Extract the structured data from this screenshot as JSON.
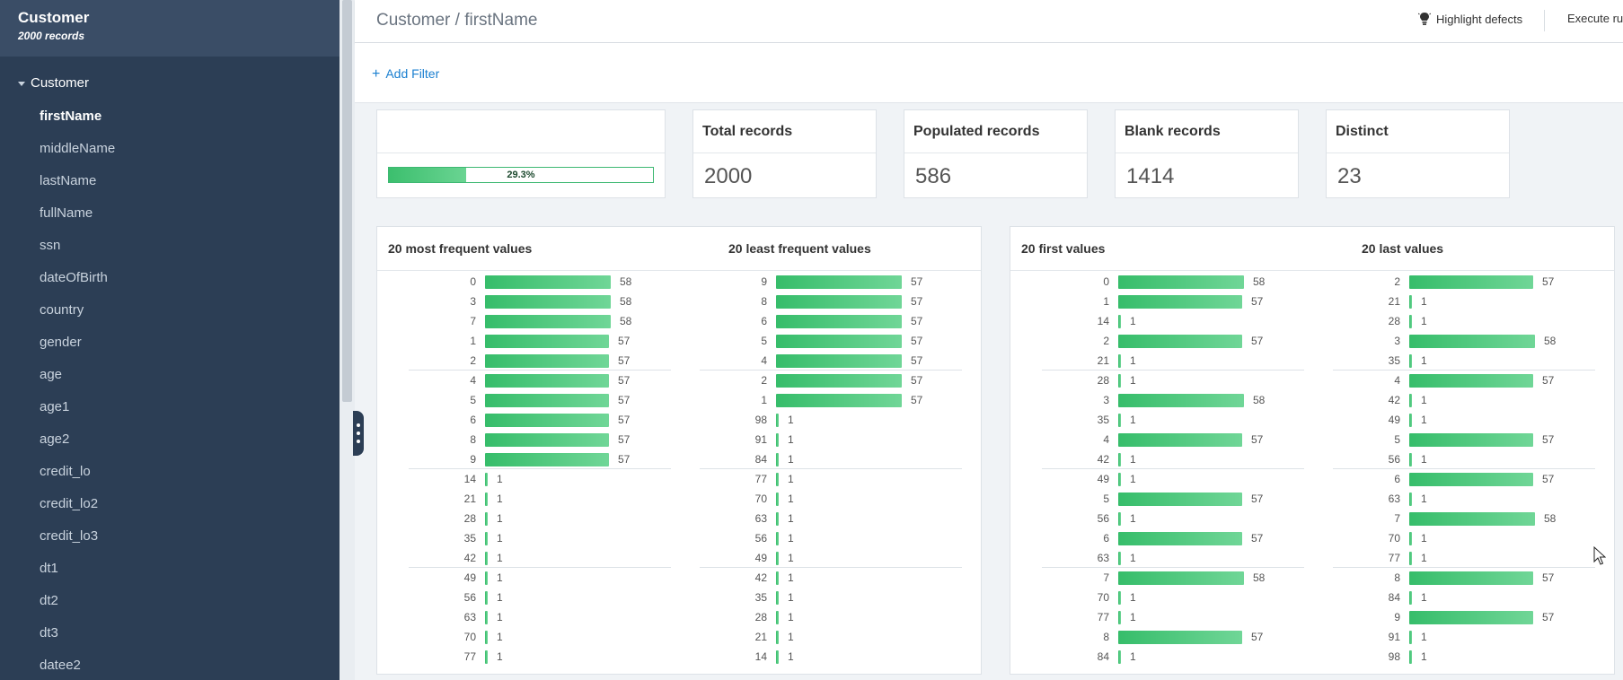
{
  "sidebar": {
    "title": "Customer",
    "subtitle": "2000 records",
    "root_label": "Customer",
    "items": [
      {
        "label": "firstName",
        "active": true
      },
      {
        "label": "middleName",
        "active": false
      },
      {
        "label": "lastName",
        "active": false
      },
      {
        "label": "fullName",
        "active": false
      },
      {
        "label": "ssn",
        "active": false
      },
      {
        "label": "dateOfBirth",
        "active": false
      },
      {
        "label": "country",
        "active": false
      },
      {
        "label": "gender",
        "active": false
      },
      {
        "label": "age",
        "active": false
      },
      {
        "label": "age1",
        "active": false
      },
      {
        "label": "age2",
        "active": false
      },
      {
        "label": "credit_lo",
        "active": false
      },
      {
        "label": "credit_lo2",
        "active": false
      },
      {
        "label": "credit_lo3",
        "active": false
      },
      {
        "label": "dt1",
        "active": false
      },
      {
        "label": "dt2",
        "active": false
      },
      {
        "label": "dt3",
        "active": false
      },
      {
        "label": "datee2",
        "active": false
      }
    ]
  },
  "header": {
    "breadcrumb": "Customer / firstName",
    "highlight_label": "Highlight defects",
    "execute_label": "Execute rul"
  },
  "filter": {
    "add_label": "Add Filter",
    "plus": "+"
  },
  "completeness": {
    "percent": 29.3,
    "label": "29.3%"
  },
  "stats": [
    {
      "title": "Total records",
      "value": "2000"
    },
    {
      "title": "Populated records",
      "value": "586"
    },
    {
      "title": "Blank records",
      "value": "1414"
    },
    {
      "title": "Distinct",
      "value": "23"
    }
  ],
  "lists": [
    {
      "title": "20 most frequent values",
      "max": 58,
      "rows": [
        {
          "v": "0",
          "c": 58
        },
        {
          "v": "3",
          "c": 58
        },
        {
          "v": "7",
          "c": 58
        },
        {
          "v": "1",
          "c": 57
        },
        {
          "v": "2",
          "c": 57
        },
        {
          "v": "4",
          "c": 57
        },
        {
          "v": "5",
          "c": 57
        },
        {
          "v": "6",
          "c": 57
        },
        {
          "v": "8",
          "c": 57
        },
        {
          "v": "9",
          "c": 57
        },
        {
          "v": "14",
          "c": 1
        },
        {
          "v": "21",
          "c": 1
        },
        {
          "v": "28",
          "c": 1
        },
        {
          "v": "35",
          "c": 1
        },
        {
          "v": "42",
          "c": 1
        },
        {
          "v": "49",
          "c": 1
        },
        {
          "v": "56",
          "c": 1
        },
        {
          "v": "63",
          "c": 1
        },
        {
          "v": "70",
          "c": 1
        },
        {
          "v": "77",
          "c": 1
        }
      ]
    },
    {
      "title": "20 least frequent values",
      "max": 57,
      "rows": [
        {
          "v": "9",
          "c": 57
        },
        {
          "v": "8",
          "c": 57
        },
        {
          "v": "6",
          "c": 57
        },
        {
          "v": "5",
          "c": 57
        },
        {
          "v": "4",
          "c": 57
        },
        {
          "v": "2",
          "c": 57
        },
        {
          "v": "1",
          "c": 57
        },
        {
          "v": "98",
          "c": 1
        },
        {
          "v": "91",
          "c": 1
        },
        {
          "v": "84",
          "c": 1
        },
        {
          "v": "77",
          "c": 1
        },
        {
          "v": "70",
          "c": 1
        },
        {
          "v": "63",
          "c": 1
        },
        {
          "v": "56",
          "c": 1
        },
        {
          "v": "49",
          "c": 1
        },
        {
          "v": "42",
          "c": 1
        },
        {
          "v": "35",
          "c": 1
        },
        {
          "v": "28",
          "c": 1
        },
        {
          "v": "21",
          "c": 1
        },
        {
          "v": "14",
          "c": 1
        }
      ]
    },
    {
      "title": "20 first values",
      "max": 58,
      "rows": [
        {
          "v": "0",
          "c": 58
        },
        {
          "v": "1",
          "c": 57
        },
        {
          "v": "14",
          "c": 1
        },
        {
          "v": "2",
          "c": 57
        },
        {
          "v": "21",
          "c": 1
        },
        {
          "v": "28",
          "c": 1
        },
        {
          "v": "3",
          "c": 58
        },
        {
          "v": "35",
          "c": 1
        },
        {
          "v": "4",
          "c": 57
        },
        {
          "v": "42",
          "c": 1
        },
        {
          "v": "49",
          "c": 1
        },
        {
          "v": "5",
          "c": 57
        },
        {
          "v": "56",
          "c": 1
        },
        {
          "v": "6",
          "c": 57
        },
        {
          "v": "63",
          "c": 1
        },
        {
          "v": "7",
          "c": 58
        },
        {
          "v": "70",
          "c": 1
        },
        {
          "v": "77",
          "c": 1
        },
        {
          "v": "8",
          "c": 57
        },
        {
          "v": "84",
          "c": 1
        }
      ]
    },
    {
      "title": "20 last values",
      "max": 58,
      "rows": [
        {
          "v": "2",
          "c": 57
        },
        {
          "v": "21",
          "c": 1
        },
        {
          "v": "28",
          "c": 1
        },
        {
          "v": "3",
          "c": 58
        },
        {
          "v": "35",
          "c": 1
        },
        {
          "v": "4",
          "c": 57
        },
        {
          "v": "42",
          "c": 1
        },
        {
          "v": "49",
          "c": 1
        },
        {
          "v": "5",
          "c": 57
        },
        {
          "v": "56",
          "c": 1
        },
        {
          "v": "6",
          "c": 57
        },
        {
          "v": "63",
          "c": 1
        },
        {
          "v": "7",
          "c": 58
        },
        {
          "v": "70",
          "c": 1
        },
        {
          "v": "77",
          "c": 1
        },
        {
          "v": "8",
          "c": 57
        },
        {
          "v": "84",
          "c": 1
        },
        {
          "v": "9",
          "c": 57
        },
        {
          "v": "91",
          "c": 1
        },
        {
          "v": "98",
          "c": 1
        }
      ]
    }
  ],
  "colors": {
    "accent": "#1a7fd0",
    "bar": "#3cbf6e",
    "sidebar": "#2c3e55"
  },
  "icons": {
    "highlight": "lightbulb-icon",
    "add": "plus-icon",
    "caret": "caret-down-icon"
  }
}
